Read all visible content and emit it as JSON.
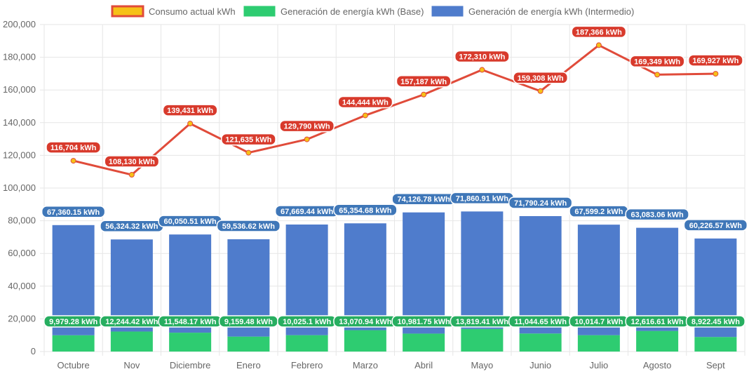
{
  "colors": {
    "consumo_fill": "#f6c117",
    "consumo_line": "#e04b3a",
    "base": "#2ecc71",
    "intermedio": "#4f7ccc",
    "label_intermedio_bg": "#3f77b8",
    "label_base_bg": "#27ae60",
    "label_consumo_bg": "#d83a2c",
    "grid": "#e6e6e6"
  },
  "chart_data": {
    "type": "bar",
    "stacked": true,
    "categories": [
      "Octubre",
      "Nov",
      "Diciembre",
      "Enero",
      "Febrero",
      "Marzo",
      "Abril",
      "Mayo",
      "Junio",
      "Julio",
      "Agosto",
      "Sept"
    ],
    "ylim": [
      0,
      200000
    ],
    "yticks": [
      "0",
      "20,000",
      "40,000",
      "60,000",
      "80,000",
      "100,000",
      "120,000",
      "140,000",
      "160,000",
      "180,000",
      "200,000"
    ],
    "grid": true,
    "legend_position": "top",
    "series": [
      {
        "name": "Consumo actual kWh",
        "type": "line",
        "values": [
          116704,
          108130,
          139431,
          121635,
          129790,
          144444,
          157187,
          172310,
          159308,
          187366,
          169349,
          169927
        ],
        "labels": [
          "116,704 kWh",
          "108,130 kWh",
          "139,431 kWh",
          "121,635 kWh",
          "129,790 kWh",
          "144,444 kWh",
          "157,187 kWh",
          "172,310 kWh",
          "159,308 kWh",
          "187,366 kWh",
          "169,349 kWh",
          "169,927 kWh"
        ]
      },
      {
        "name": "Generación de energía kWh (Base)",
        "type": "bar",
        "values": [
          9979.28,
          12244.42,
          11548.17,
          9159.48,
          10025.1,
          13070.94,
          10981.75,
          13819.41,
          11044.65,
          10014.7,
          12616.61,
          8922.45
        ],
        "labels": [
          "9,979.28 kWh",
          "12,244.42 kWh",
          "11,548.17 kWh",
          "9,159.48 kWh",
          "10,025.1 kWh",
          "13,070.94 kWh",
          "10,981.75 kWh",
          "13,819.41 kWh",
          "11,044.65 kWh",
          "10,014.7 kWh",
          "12,616.61 kWh",
          "8,922.45 kWh"
        ]
      },
      {
        "name": "Generación de energía kWh (Intermedio)",
        "type": "bar",
        "values": [
          67360.15,
          56324.32,
          60050.51,
          59536.62,
          67669.44,
          65354.68,
          74126.78,
          71860.91,
          71790.24,
          67599.2,
          63083.06,
          60226.57
        ],
        "labels": [
          "67,360.15 kWh",
          "56,324.32 kWh",
          "60,050.51 kWh",
          "59,536.62 kWh",
          "67,669.44 kWh",
          "65,354.68 kWh",
          "74,126.78 kWh",
          "71,860.91 kWh",
          "71,790.24 kWh",
          "67,599.2 kWh",
          "63,083.06 kWh",
          "60,226.57 kWh"
        ]
      }
    ]
  }
}
